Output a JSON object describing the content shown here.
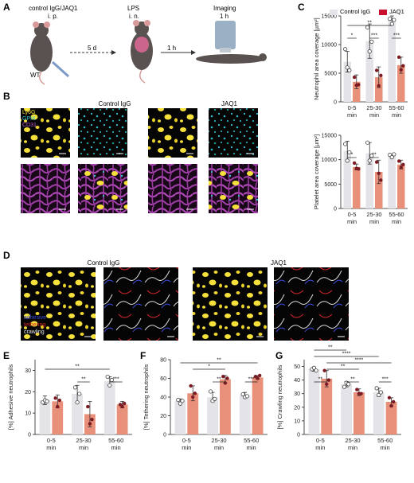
{
  "colors": {
    "control": "#e3e3e8",
    "jaq1_bar": "#e8907a",
    "jaq1_legend": "#c8102e",
    "point_dark": "#7a1a22",
    "err": "#333333",
    "ly6g": "#f5e13a",
    "gpix": "#35c7d6",
    "cd31": "#b04ab8",
    "adhesive": "#3a4bd8",
    "tethering": "#d6262a",
    "crawling": "#d8d8d8"
  },
  "panel_labels": {
    "a": "A",
    "b": "B",
    "c": "C",
    "d": "D",
    "e": "E",
    "f": "F",
    "g": "G"
  },
  "panel_a": {
    "treatment": "control IgG/JAQ1",
    "route1": "i. p.",
    "lps": "LPS",
    "route2": "i. n.",
    "imaging": "Imaging",
    "imaging_time": "1 h",
    "interval1": "5 d",
    "interval2": "1 h",
    "mouse_label": "WT"
  },
  "panel_b": {
    "col_control": "Control IgG",
    "col_jaq1": "JAQ1",
    "stain1": "Ly6G",
    "stain2": "GPIX",
    "stain3": "CD31"
  },
  "panel_d": {
    "col_control": "Control IgG",
    "col_jaq1": "JAQ1",
    "legend_adhesive": "adhesive",
    "legend_tethering": "tethering",
    "legend_crawling": "crawling"
  },
  "legend": {
    "control": "Control IgG",
    "jaq1": "JAQ1"
  },
  "chart_data": [
    {
      "id": "c_top",
      "type": "bar",
      "ylabel": "Neutrophil area coverage [µm²]",
      "categories": [
        "0-5 min",
        "25-30 min",
        "55-60 min"
      ],
      "series": [
        {
          "name": "Control IgG",
          "values": [
            7000,
            10600,
            14200
          ]
        },
        {
          "name": "JAQ1",
          "values": [
            3500,
            4300,
            6400
          ]
        }
      ],
      "errors": [
        [
          1800,
          3000,
          800
        ],
        [
          1200,
          1800,
          1400
        ]
      ],
      "points": [
        [
          [
            9200,
            6000,
            5500
          ],
          [
            13000,
            8800,
            10500
          ],
          [
            14500,
            13600,
            14300
          ]
        ],
        [
          [
            4300,
            2900,
            3000
          ],
          [
            5500,
            2800,
            4600
          ],
          [
            7800,
            5600,
            6300
          ]
        ]
      ],
      "ylim": [
        0,
        15000
      ],
      "yticks": [
        "0",
        "5000",
        "10000",
        "15000"
      ],
      "significance": [
        {
          "a": [
            0,
            0
          ],
          "b": [
            0,
            1
          ],
          "label": "*"
        },
        {
          "a": [
            1,
            0
          ],
          "b": [
            1,
            1
          ],
          "label": "***"
        },
        {
          "a": [
            2,
            0
          ],
          "b": [
            2,
            1
          ],
          "label": "***"
        },
        {
          "a": [
            0,
            0
          ],
          "b": [
            2,
            0
          ],
          "label": "**"
        }
      ]
    },
    {
      "id": "c_bottom",
      "type": "bar",
      "ylabel": "Platelet area coverage [µm²]",
      "categories": [
        "0-5 min",
        "25-30 min",
        "55-60 min"
      ],
      "series": [
        {
          "name": "Control IgG",
          "values": [
            11800,
            11300,
            10800
          ]
        },
        {
          "name": "JAQ1",
          "values": [
            8500,
            7500,
            9000
          ]
        }
      ],
      "errors": [
        [
          2000,
          2200,
          300
        ],
        [
          600,
          2400,
          900
        ]
      ],
      "points": [
        [
          [
            13200,
            9800,
            11500
          ],
          [
            13500,
            9800,
            10800
          ],
          [
            11000,
            10500,
            11100
          ]
        ],
        [
          [
            9300,
            8200,
            8100
          ],
          [
            9500,
            7200,
            5800
          ],
          [
            9700,
            8400,
            9000
          ]
        ]
      ],
      "ylim": [
        0,
        15000
      ],
      "yticks": [
        "0",
        "5000",
        "10000",
        "15000"
      ],
      "significance": [
        {
          "a": [
            0,
            0
          ],
          "b": [
            0,
            1
          ],
          "label": "*"
        },
        {
          "a": [
            1,
            0
          ],
          "b": [
            1,
            1
          ],
          "label": "**"
        }
      ]
    },
    {
      "id": "e",
      "type": "bar",
      "ylabel": "[%] Adhesive neutrophils",
      "categories": [
        "0-5 min",
        "25-30 min",
        "55-60 min"
      ],
      "series": [
        {
          "name": "Control IgG",
          "values": [
            16,
            19,
            25
          ]
        },
        {
          "name": "JAQ1",
          "values": [
            15.5,
            9.5,
            14
          ]
        }
      ],
      "errors": [
        [
          2,
          4,
          2
        ],
        [
          3,
          6,
          1.5
        ]
      ],
      "points": [
        [
          [
            15,
            16,
            15.5
          ],
          [
            22,
            15,
            19
          ],
          [
            27,
            23,
            25.5
          ]
        ],
        [
          [
            17,
            13,
            16
          ],
          [
            13,
            5,
            7
          ],
          [
            14,
            13,
            14.5
          ]
        ]
      ],
      "ylim": [
        0,
        35
      ],
      "yticks": [
        "0",
        "10",
        "20",
        "30"
      ],
      "significance": [
        {
          "a": [
            1,
            0
          ],
          "b": [
            1,
            1
          ],
          "label": "**"
        },
        {
          "a": [
            2,
            0
          ],
          "b": [
            2,
            1
          ],
          "label": "***"
        },
        {
          "a": [
            0,
            0
          ],
          "b": [
            2,
            0
          ],
          "label": "**"
        }
      ]
    },
    {
      "id": "f",
      "type": "bar",
      "ylabel": "[%] Tethering neutrophils",
      "categories": [
        "0-5 min",
        "25-30 min",
        "55-60 min"
      ],
      "series": [
        {
          "name": "Control IgG",
          "values": [
            36,
            40,
            42
          ]
        },
        {
          "name": "JAQ1",
          "values": [
            44,
            59,
            61
          ]
        }
      ],
      "errors": [
        [
          2,
          5,
          3
        ],
        [
          8,
          4,
          2
        ]
      ],
      "points": [
        [
          [
            37,
            33,
            36
          ],
          [
            46,
            36,
            38
          ],
          [
            43,
            40,
            41
          ]
        ],
        [
          [
            52,
            40,
            44
          ],
          [
            62,
            55,
            60
          ],
          [
            62,
            60,
            63
          ]
        ]
      ],
      "ylim": [
        0,
        80
      ],
      "yticks": [
        "0",
        "20",
        "40",
        "60",
        "80"
      ],
      "significance": [
        {
          "a": [
            1,
            0
          ],
          "b": [
            1,
            1
          ],
          "label": "**"
        },
        {
          "a": [
            2,
            0
          ],
          "b": [
            2,
            1
          ],
          "label": "***"
        },
        {
          "a": [
            0,
            1
          ],
          "b": [
            1,
            1
          ],
          "label": "*"
        },
        {
          "a": [
            0,
            0
          ],
          "b": [
            2,
            1
          ],
          "label": "**"
        }
      ]
    },
    {
      "id": "g",
      "type": "bar",
      "ylabel": "[%] Crawling neutrophils",
      "categories": [
        "0-5 min",
        "25-30 min",
        "55-60 min"
      ],
      "series": [
        {
          "name": "Control IgG",
          "values": [
            48,
            37,
            31
          ]
        },
        {
          "name": "JAQ1",
          "values": [
            41,
            31,
            24
          ]
        }
      ],
      "errors": [
        [
          1.5,
          2,
          3
        ],
        [
          6,
          2.5,
          3
        ]
      ],
      "points": [
        [
          [
            48,
            49,
            47
          ],
          [
            35,
            38,
            37
          ],
          [
            34,
            29,
            31
          ]
        ],
        [
          [
            47,
            37,
            40
          ],
          [
            33,
            30,
            30
          ],
          [
            27,
            21,
            24
          ]
        ]
      ],
      "ylim": [
        0,
        55
      ],
      "yticks": [
        "0",
        "10",
        "20",
        "30",
        "40",
        "50"
      ],
      "significance": [
        {
          "a": [
            0,
            0
          ],
          "b": [
            0,
            1
          ],
          "label": "**"
        },
        {
          "a": [
            1,
            0
          ],
          "b": [
            1,
            1
          ],
          "label": "**"
        },
        {
          "a": [
            2,
            0
          ],
          "b": [
            2,
            1
          ],
          "label": "***"
        },
        {
          "a": [
            0,
            1
          ],
          "b": [
            1,
            1
          ],
          "label": "**"
        },
        {
          "a": [
            0,
            1
          ],
          "b": [
            2,
            1
          ],
          "label": "****"
        },
        {
          "a": [
            0,
            0
          ],
          "b": [
            2,
            0
          ],
          "label": "****"
        },
        {
          "a": [
            0,
            0
          ],
          "b": [
            1,
            0
          ],
          "label": "**"
        }
      ]
    }
  ]
}
